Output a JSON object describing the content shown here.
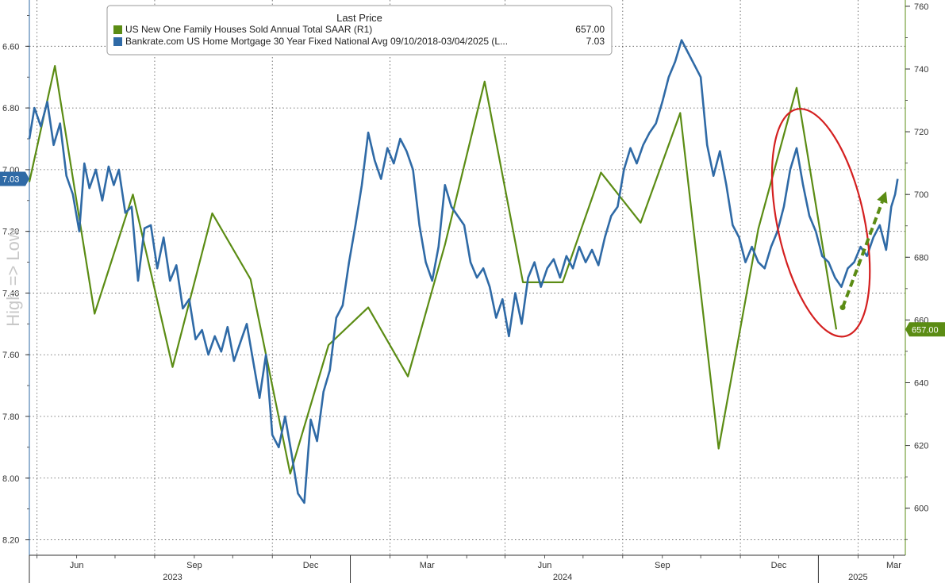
{
  "chart_data": {
    "type": "line",
    "title": "",
    "legend": {
      "header": "Last Price",
      "placement": "top-center",
      "entries": [
        {
          "name": "US New One Family Houses Sold Annual Total SAAR  (R1)",
          "last": "657.00",
          "color": "#5b8c14"
        },
        {
          "name": "Bankrate.com US Home Mortgage 30 Year Fixed National Avg 09/10/2018-03/04/2025   (L...",
          "last": "7.03",
          "color": "#2f6aa6"
        }
      ]
    },
    "left_axis": {
      "label": "High => Low",
      "inverted": true,
      "range": [
        8.25,
        6.45
      ],
      "ticks": [
        "6.60",
        "6.80",
        "7.00",
        "7.20",
        "7.40",
        "7.60",
        "7.80",
        "8.00",
        "8.20"
      ],
      "last_value_badge": "7.03",
      "badge_color": "#2f6aa6"
    },
    "right_axis": {
      "range": [
        585,
        762
      ],
      "ticks": [
        "600",
        "620",
        "640",
        "660",
        "680",
        "700",
        "720",
        "740",
        "760"
      ],
      "last_value_badge": "657.00",
      "badge_color": "#5b8c14"
    },
    "x_axis": {
      "range": [
        "2023-04-25",
        "2025-03-10"
      ],
      "month_ticks": [
        {
          "date": "2023-06-01",
          "label": "Jun"
        },
        {
          "date": "2023-09-01",
          "label": "Sep"
        },
        {
          "date": "2023-12-01",
          "label": "Dec"
        },
        {
          "date": "2024-03-01",
          "label": "Mar"
        },
        {
          "date": "2024-06-01",
          "label": "Jun"
        },
        {
          "date": "2024-09-01",
          "label": "Sep"
        },
        {
          "date": "2024-12-01",
          "label": "Dec"
        },
        {
          "date": "2025-03-01",
          "label": "Mar"
        }
      ],
      "year_labels": [
        {
          "date": "2023-08-15",
          "label": "2023"
        },
        {
          "date": "2024-06-15",
          "label": "2024"
        },
        {
          "date": "2025-02-01",
          "label": "2025"
        }
      ],
      "year_boundaries": [
        "2023-04-25",
        "2024-01-01",
        "2025-01-01"
      ],
      "grid_dates": [
        "2023-05-01",
        "2023-08-01",
        "2023-11-01",
        "2024-02-01",
        "2024-05-01",
        "2024-08-01",
        "2024-11-01",
        "2025-02-01"
      ]
    },
    "grid": true,
    "series": [
      {
        "name": "US New One Family Houses Sold Annual Total SAAR  (R1)",
        "axis": "right",
        "color": "#5b8c14",
        "points": [
          [
            "2023-04-25",
            704
          ],
          [
            "2023-05-15",
            741
          ],
          [
            "2023-06-15",
            662
          ],
          [
            "2023-07-15",
            700
          ],
          [
            "2023-08-15",
            645
          ],
          [
            "2023-09-15",
            694
          ],
          [
            "2023-10-15",
            673
          ],
          [
            "2023-11-15",
            611
          ],
          [
            "2023-12-15",
            652
          ],
          [
            "2024-01-15",
            664
          ],
          [
            "2024-02-15",
            642
          ],
          [
            "2024-03-15",
            684
          ],
          [
            "2024-04-15",
            736
          ],
          [
            "2024-05-15",
            672
          ],
          [
            "2024-06-15",
            672
          ],
          [
            "2024-07-15",
            707
          ],
          [
            "2024-08-15",
            691
          ],
          [
            "2024-09-15",
            726
          ],
          [
            "2024-10-15",
            619
          ],
          [
            "2024-11-15",
            689
          ],
          [
            "2024-12-15",
            734
          ],
          [
            "2025-01-15",
            657
          ]
        ]
      },
      {
        "name": "Bankrate.com US Home Mortgage 30 Year Fixed National Avg 09/10/2018-03/04/2025   (L...",
        "axis": "left",
        "color": "#2f6aa6",
        "points": [
          [
            "2023-04-25",
            6.9
          ],
          [
            "2023-04-29",
            6.8
          ],
          [
            "2023-05-04",
            6.86
          ],
          [
            "2023-05-09",
            6.78
          ],
          [
            "2023-05-14",
            6.92
          ],
          [
            "2023-05-19",
            6.85
          ],
          [
            "2023-05-24",
            7.02
          ],
          [
            "2023-05-29",
            7.08
          ],
          [
            "2023-06-03",
            7.2
          ],
          [
            "2023-06-07",
            6.98
          ],
          [
            "2023-06-11",
            7.06
          ],
          [
            "2023-06-16",
            7.0
          ],
          [
            "2023-06-21",
            7.1
          ],
          [
            "2023-06-26",
            6.99
          ],
          [
            "2023-06-30",
            7.05
          ],
          [
            "2023-07-04",
            7.0
          ],
          [
            "2023-07-09",
            7.14
          ],
          [
            "2023-07-14",
            7.12
          ],
          [
            "2023-07-19",
            7.36
          ],
          [
            "2023-07-24",
            7.19
          ],
          [
            "2023-07-29",
            7.18
          ],
          [
            "2023-08-03",
            7.32
          ],
          [
            "2023-08-08",
            7.22
          ],
          [
            "2023-08-13",
            7.36
          ],
          [
            "2023-08-18",
            7.31
          ],
          [
            "2023-08-23",
            7.45
          ],
          [
            "2023-08-28",
            7.42
          ],
          [
            "2023-09-02",
            7.55
          ],
          [
            "2023-09-07",
            7.52
          ],
          [
            "2023-09-12",
            7.6
          ],
          [
            "2023-09-17",
            7.54
          ],
          [
            "2023-09-22",
            7.59
          ],
          [
            "2023-09-27",
            7.51
          ],
          [
            "2023-10-02",
            7.62
          ],
          [
            "2023-10-07",
            7.56
          ],
          [
            "2023-10-12",
            7.5
          ],
          [
            "2023-10-17",
            7.62
          ],
          [
            "2023-10-22",
            7.74
          ],
          [
            "2023-10-27",
            7.6
          ],
          [
            "2023-11-01",
            7.86
          ],
          [
            "2023-11-06",
            7.9
          ],
          [
            "2023-11-11",
            7.8
          ],
          [
            "2023-11-16",
            7.92
          ],
          [
            "2023-11-21",
            8.05
          ],
          [
            "2023-11-26",
            8.08
          ],
          [
            "2023-12-01",
            7.81
          ],
          [
            "2023-12-06",
            7.88
          ],
          [
            "2023-12-11",
            7.72
          ],
          [
            "2023-12-16",
            7.65
          ],
          [
            "2023-12-21",
            7.48
          ],
          [
            "2023-12-26",
            7.44
          ],
          [
            "2023-12-31",
            7.3
          ],
          [
            "2024-01-05",
            7.18
          ],
          [
            "2024-01-10",
            7.05
          ],
          [
            "2024-01-15",
            6.88
          ],
          [
            "2024-01-20",
            6.97
          ],
          [
            "2024-01-25",
            7.03
          ],
          [
            "2024-01-30",
            6.93
          ],
          [
            "2024-02-04",
            6.98
          ],
          [
            "2024-02-09",
            6.9
          ],
          [
            "2024-02-14",
            6.94
          ],
          [
            "2024-02-19",
            7.0
          ],
          [
            "2024-02-24",
            7.18
          ],
          [
            "2024-02-29",
            7.3
          ],
          [
            "2024-03-05",
            7.36
          ],
          [
            "2024-03-10",
            7.25
          ],
          [
            "2024-03-15",
            7.05
          ],
          [
            "2024-03-20",
            7.12
          ],
          [
            "2024-03-25",
            7.15
          ],
          [
            "2024-03-30",
            7.18
          ],
          [
            "2024-04-04",
            7.3
          ],
          [
            "2024-04-09",
            7.35
          ],
          [
            "2024-04-14",
            7.32
          ],
          [
            "2024-04-19",
            7.38
          ],
          [
            "2024-04-24",
            7.48
          ],
          [
            "2024-04-29",
            7.42
          ],
          [
            "2024-05-04",
            7.54
          ],
          [
            "2024-05-09",
            7.4
          ],
          [
            "2024-05-14",
            7.5
          ],
          [
            "2024-05-19",
            7.35
          ],
          [
            "2024-05-24",
            7.3
          ],
          [
            "2024-05-29",
            7.38
          ],
          [
            "2024-06-03",
            7.32
          ],
          [
            "2024-06-08",
            7.29
          ],
          [
            "2024-06-13",
            7.35
          ],
          [
            "2024-06-18",
            7.28
          ],
          [
            "2024-06-23",
            7.32
          ],
          [
            "2024-06-28",
            7.25
          ],
          [
            "2024-07-03",
            7.3
          ],
          [
            "2024-07-08",
            7.26
          ],
          [
            "2024-07-13",
            7.31
          ],
          [
            "2024-07-18",
            7.22
          ],
          [
            "2024-07-23",
            7.15
          ],
          [
            "2024-07-28",
            7.12
          ],
          [
            "2024-08-02",
            7.0
          ],
          [
            "2024-08-07",
            6.93
          ],
          [
            "2024-08-12",
            6.98
          ],
          [
            "2024-08-17",
            6.92
          ],
          [
            "2024-08-22",
            6.88
          ],
          [
            "2024-08-27",
            6.85
          ],
          [
            "2024-09-01",
            6.78
          ],
          [
            "2024-09-06",
            6.7
          ],
          [
            "2024-09-11",
            6.65
          ],
          [
            "2024-09-16",
            6.58
          ],
          [
            "2024-09-21",
            6.62
          ],
          [
            "2024-09-26",
            6.66
          ],
          [
            "2024-10-01",
            6.7
          ],
          [
            "2024-10-06",
            6.92
          ],
          [
            "2024-10-11",
            7.02
          ],
          [
            "2024-10-16",
            6.94
          ],
          [
            "2024-10-21",
            7.05
          ],
          [
            "2024-10-26",
            7.18
          ],
          [
            "2024-10-31",
            7.22
          ],
          [
            "2024-11-05",
            7.3
          ],
          [
            "2024-11-10",
            7.25
          ],
          [
            "2024-11-15",
            7.3
          ],
          [
            "2024-11-20",
            7.32
          ],
          [
            "2024-11-25",
            7.25
          ],
          [
            "2024-11-30",
            7.2
          ],
          [
            "2024-12-05",
            7.12
          ],
          [
            "2024-12-10",
            7.0
          ],
          [
            "2024-12-15",
            6.93
          ],
          [
            "2024-12-20",
            7.05
          ],
          [
            "2024-12-25",
            7.15
          ],
          [
            "2024-12-30",
            7.2
          ],
          [
            "2025-01-04",
            7.28
          ],
          [
            "2025-01-09",
            7.3
          ],
          [
            "2025-01-14",
            7.35
          ],
          [
            "2025-01-19",
            7.38
          ],
          [
            "2025-01-24",
            7.32
          ],
          [
            "2025-01-29",
            7.3
          ],
          [
            "2025-02-03",
            7.25
          ],
          [
            "2025-02-08",
            7.28
          ],
          [
            "2025-02-13",
            7.22
          ],
          [
            "2025-02-18",
            7.18
          ],
          [
            "2025-02-23",
            7.26
          ],
          [
            "2025-02-27",
            7.12
          ],
          [
            "2025-03-02",
            7.08
          ],
          [
            "2025-03-04",
            7.03
          ]
        ]
      }
    ],
    "annotations": [
      {
        "kind": "ellipse",
        "color": "#d42020",
        "center": [
          "2025-01-03",
          691
        ],
        "radii_days": 34,
        "radii_value": 37,
        "tilt_deg": -12
      },
      {
        "kind": "dashed-arrow",
        "color": "#5b8c14",
        "from": [
          "2025-01-20",
          664
        ],
        "to": [
          "2025-02-23",
          701
        ]
      }
    ]
  }
}
